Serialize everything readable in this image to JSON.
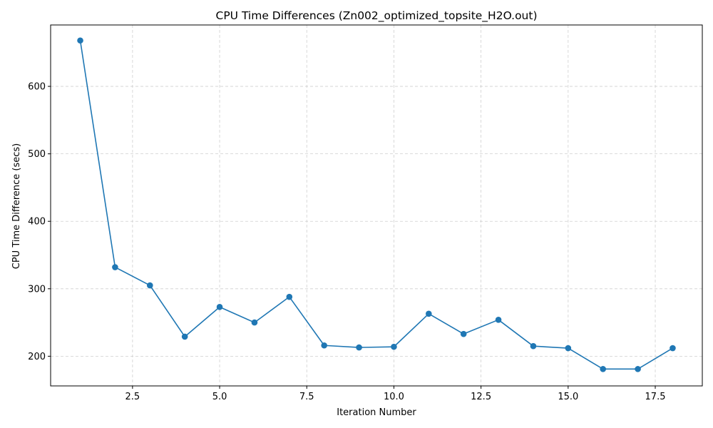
{
  "chart_data": {
    "type": "line",
    "title": "CPU Time Differences (Zn002_optimized_topsite_H2O.out)",
    "xlabel": "Iteration Number",
    "ylabel": "CPU Time Difference (secs)",
    "xlim": [
      0.15,
      18.85
    ],
    "ylim": [
      156,
      691
    ],
    "x_ticks": [
      2.5,
      5.0,
      7.5,
      10.0,
      12.5,
      15.0,
      17.5
    ],
    "x_tick_labels": [
      "2.5",
      "5.0",
      "7.5",
      "10.0",
      "12.5",
      "15.0",
      "17.5"
    ],
    "y_ticks": [
      200,
      300,
      400,
      500,
      600
    ],
    "y_tick_labels": [
      "200",
      "300",
      "400",
      "500",
      "600"
    ],
    "grid": true,
    "color": "#1f77b4",
    "marker": "circle",
    "series": [
      {
        "x": [
          1,
          2,
          3,
          4,
          5,
          6,
          7,
          8,
          9,
          10,
          11,
          12,
          13,
          14,
          15,
          16,
          17,
          18
        ],
        "values": [
          668,
          332,
          305,
          229,
          273,
          250,
          288,
          216,
          213,
          214,
          263,
          233,
          254,
          215,
          212,
          181,
          181,
          212
        ]
      }
    ]
  }
}
